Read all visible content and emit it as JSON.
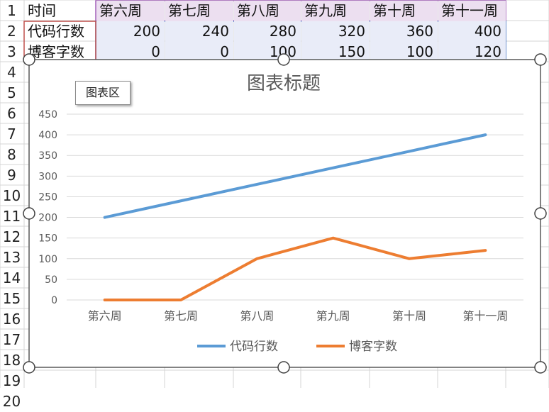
{
  "sheet": {
    "row_numbers": [
      "1",
      "2",
      "3",
      "4",
      "5",
      "6",
      "7",
      "8",
      "9",
      "10",
      "11",
      "12",
      "13",
      "14",
      "15",
      "16",
      "17",
      "18",
      "19",
      "20"
    ],
    "header_row": [
      "时间",
      "第六周",
      "第七周",
      "第八周",
      "第九周",
      "第十周",
      "第十一周"
    ],
    "rows": [
      [
        "代码行数",
        "200",
        "240",
        "280",
        "320",
        "360",
        "400"
      ],
      [
        "博客字数",
        "0",
        "0",
        "100",
        "150",
        "100",
        "120"
      ]
    ]
  },
  "chart_area_label": "图表区",
  "chart_data": {
    "type": "line",
    "title": "图表标题",
    "categories": [
      "第六周",
      "第七周",
      "第八周",
      "第九周",
      "第十周",
      "第十一周"
    ],
    "series": [
      {
        "name": "代码行数",
        "values": [
          200,
          240,
          280,
          320,
          360,
          400
        ],
        "color": "#5b9bd5"
      },
      {
        "name": "博客字数",
        "values": [
          0,
          0,
          100,
          150,
          100,
          120
        ],
        "color": "#ed7d31"
      }
    ],
    "ylim": [
      0,
      450
    ],
    "yticks": [
      0,
      50,
      100,
      150,
      200,
      250,
      300,
      350,
      400,
      450
    ],
    "grid": true,
    "legend_position": "bottom"
  }
}
